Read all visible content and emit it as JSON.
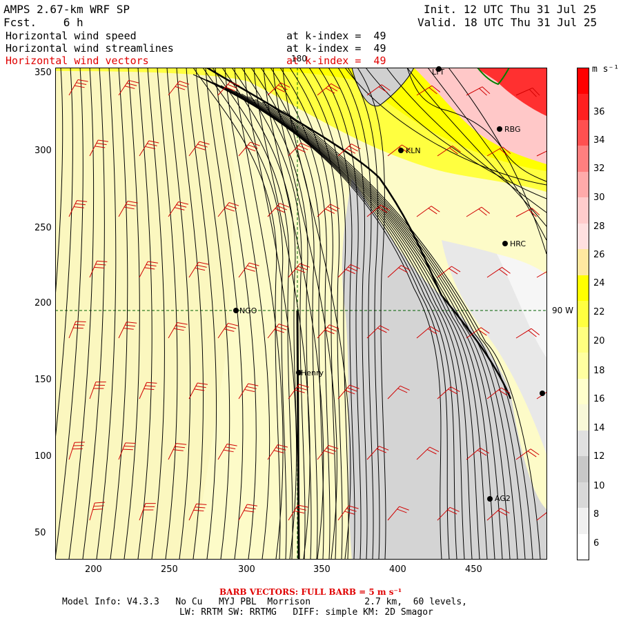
{
  "header": {
    "model": "AMPS 2.67-km WRF SP",
    "fcst": "Fcst.    6 h",
    "init": "Init. 12 UTC Thu 31 Jul 25",
    "valid": "Valid. 18 UTC Thu 31 Jul 25",
    "fields": [
      {
        "name": "Horizontal wind speed",
        "level": "at k-index =  49",
        "color": "#000000"
      },
      {
        "name": "Horizontal wind streamlines",
        "level": "at k-index =  49",
        "color": "#000000"
      },
      {
        "name": "Horizontal wind vectors",
        "level": "at k-index =  49",
        "color": "#e00000"
      }
    ]
  },
  "map": {
    "x_ticks": [
      "200",
      "250",
      "300",
      "350",
      "400",
      "450"
    ],
    "y_ticks": [
      "350",
      "300",
      "250",
      "200",
      "150",
      "100",
      "50"
    ],
    "meridian_label": "180",
    "parallel_label": "90 W",
    "stations": [
      {
        "name": "LYT"
      },
      {
        "name": "RBG"
      },
      {
        "name": "KLN"
      },
      {
        "name": "HRC"
      },
      {
        "name": "NGO"
      },
      {
        "name": "Henry"
      },
      {
        "name": "AG2"
      },
      {
        "name": ""
      }
    ]
  },
  "colorbar": {
    "unit_label": "m s⁻¹",
    "labels": [
      "36",
      "34",
      "32",
      "30",
      "28",
      "26",
      "24",
      "22",
      "20",
      "18",
      "16",
      "14",
      "12",
      "10",
      "8",
      "6"
    ],
    "colors": [
      "#ff0000",
      "#ff2020",
      "#ff5050",
      "#ff7f7f",
      "#ffaaaa",
      "#ffcccc",
      "#ffe0e0",
      "#ffe8a0",
      "#ffff00",
      "#ffff40",
      "#ffff80",
      "#ffffa0",
      "#ffffcc",
      "#f8f8d8",
      "#e0e0e0",
      "#c8c8c8",
      "#d8d8d8",
      "#f0f0f0",
      "#ffffff"
    ]
  },
  "footer": {
    "barb": "BARB VECTORS:  FULL BARB = 5 m s⁻¹",
    "model_info": "Model Info: V4.3.3   No Cu   MYJ PBL  Morrison          2.7 km,  60 levels,",
    "model_info2": "LW: RRTM SW: RRTMG   DIFF: simple KM: 2D Smagor"
  }
}
